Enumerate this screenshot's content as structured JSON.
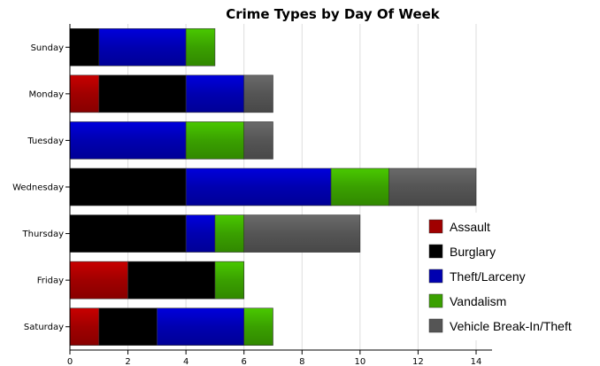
{
  "chart_data": {
    "type": "bar",
    "orientation": "horizontal",
    "stacked": true,
    "title": "Crime Types by Day Of Week",
    "xlabel": "",
    "ylabel": "",
    "categories": [
      "Sunday",
      "Monday",
      "Tuesday",
      "Wednesday",
      "Thursday",
      "Friday",
      "Saturday"
    ],
    "series": [
      {
        "name": "Assault",
        "color": "#a00000",
        "values": [
          0,
          1,
          0,
          0,
          0,
          2,
          1
        ]
      },
      {
        "name": "Burglary",
        "color": "#000000",
        "values": [
          1,
          3,
          0,
          4,
          4,
          3,
          2
        ]
      },
      {
        "name": "Theft/Larceny",
        "color": "#0000b0",
        "values": [
          3,
          2,
          4,
          5,
          1,
          0,
          3
        ]
      },
      {
        "name": "Vandalism",
        "color": "#3aa000",
        "values": [
          1,
          0,
          2,
          2,
          1,
          1,
          1
        ]
      },
      {
        "name": "Vehicle Break-In/Theft",
        "color": "#555555",
        "values": [
          0,
          1,
          1,
          3,
          4,
          0,
          0
        ]
      }
    ],
    "xlim": [
      0,
      14
    ],
    "xticks": [
      "0",
      "2",
      "4",
      "6",
      "8",
      "10",
      "12",
      "14"
    ],
    "grid": true,
    "legend": "bottom-right"
  }
}
